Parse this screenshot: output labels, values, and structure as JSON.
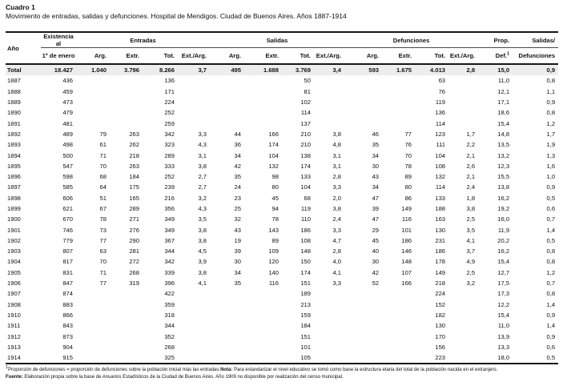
{
  "title": "Cuadro 1",
  "subtitle": "Movimiento de entradas, salidas y defunciones. Hospital de Mendigos. Ciudad de Buenos Aires. Años 1887-1914",
  "table": {
    "header": {
      "col_year": "Año",
      "col_stock_line1": "Existencia al",
      "col_stock_line2": "1º de enero",
      "groups": [
        "Entradas",
        "Salidas",
        "Defunciones"
      ],
      "sub": [
        "Arg.",
        "Extr.",
        "Tot.",
        "Ext./Arg."
      ],
      "col_prop_line1": "Prop.",
      "col_prop_line2": "Def.",
      "col_prop_sup": "1",
      "col_ratio_line1": "Salidas/",
      "col_ratio_line2": "Defunciones"
    },
    "rows": [
      [
        "Total",
        "18.427",
        "1.040",
        "3.796",
        "8.266",
        "3,7",
        "495",
        "1.688",
        "3.769",
        "3,4",
        "593",
        "1.675",
        "4.013",
        "2,8",
        "15,0",
        "0,9"
      ],
      [
        "1887",
        "436",
        "",
        "",
        "136",
        "",
        "",
        "",
        "50",
        "",
        "",
        "",
        "63",
        "",
        "11,0",
        "0,8"
      ],
      [
        "1888",
        "459",
        "",
        "",
        "171",
        "",
        "",
        "",
        "81",
        "",
        "",
        "",
        "76",
        "",
        "12,1",
        "1,1"
      ],
      [
        "1889",
        "473",
        "",
        "",
        "224",
        "",
        "",
        "",
        "102",
        "",
        "",
        "",
        "119",
        "",
        "17,1",
        "0,9"
      ],
      [
        "1890",
        "479",
        "",
        "",
        "252",
        "",
        "",
        "",
        "114",
        "",
        "",
        "",
        "136",
        "",
        "18,6",
        "0,8"
      ],
      [
        "1891",
        "481",
        "",
        "",
        "259",
        "",
        "",
        "",
        "137",
        "",
        "",
        "",
        "114",
        "",
        "15,4",
        "1,2"
      ],
      [
        "1892",
        "489",
        "79",
        "263",
        "342",
        "3,3",
        "44",
        "166",
        "210",
        "3,8",
        "46",
        "77",
        "123",
        "1,7",
        "14,8",
        "1,7"
      ],
      [
        "1893",
        "498",
        "61",
        "262",
        "323",
        "4,3",
        "36",
        "174",
        "210",
        "4,8",
        "35",
        "76",
        "111",
        "2,2",
        "13,5",
        "1,9"
      ],
      [
        "1894",
        "500",
        "71",
        "218",
        "289",
        "3,1",
        "34",
        "104",
        "138",
        "3,1",
        "34",
        "70",
        "104",
        "2,1",
        "13,2",
        "1,3"
      ],
      [
        "1895",
        "547",
        "70",
        "263",
        "333",
        "3,8",
        "42",
        "132",
        "174",
        "3,1",
        "30",
        "78",
        "108",
        "2,6",
        "12,3",
        "1,6"
      ],
      [
        "1896",
        "598",
        "68",
        "184",
        "252",
        "2,7",
        "35",
        "98",
        "133",
        "2,8",
        "43",
        "89",
        "132",
        "2,1",
        "15,5",
        "1,0"
      ],
      [
        "1897",
        "585",
        "64",
        "175",
        "239",
        "2,7",
        "24",
        "80",
        "104",
        "3,3",
        "34",
        "80",
        "114",
        "2,4",
        "13,8",
        "0,9"
      ],
      [
        "1898",
        "606",
        "51",
        "165",
        "216",
        "3,2",
        "23",
        "45",
        "68",
        "2,0",
        "47",
        "86",
        "133",
        "1,8",
        "16,2",
        "0,5"
      ],
      [
        "1899",
        "621",
        "67",
        "289",
        "356",
        "4,3",
        "25",
        "94",
        "119",
        "3,8",
        "39",
        "149",
        "188",
        "3,8",
        "19,2",
        "0,6"
      ],
      [
        "1900",
        "670",
        "78",
        "271",
        "349",
        "3,5",
        "32",
        "78",
        "110",
        "2,4",
        "47",
        "116",
        "163",
        "2,5",
        "16,0",
        "0,7"
      ],
      [
        "1901",
        "746",
        "73",
        "276",
        "349",
        "3,8",
        "43",
        "143",
        "186",
        "3,3",
        "29",
        "101",
        "130",
        "3,5",
        "11,9",
        "1,4"
      ],
      [
        "1902",
        "779",
        "77",
        "290",
        "367",
        "3,8",
        "19",
        "89",
        "108",
        "4,7",
        "45",
        "186",
        "231",
        "4,1",
        "20,2",
        "0,5"
      ],
      [
        "1903",
        "807",
        "63",
        "281",
        "344",
        "4,5",
        "39",
        "109",
        "148",
        "2,8",
        "40",
        "146",
        "186",
        "3,7",
        "16,2",
        "0,8"
      ],
      [
        "1904",
        "817",
        "70",
        "272",
        "342",
        "3,9",
        "30",
        "120",
        "150",
        "4,0",
        "30",
        "148",
        "178",
        "4,9",
        "15,4",
        "0,8"
      ],
      [
        "1905",
        "831",
        "71",
        "268",
        "339",
        "3,8",
        "34",
        "140",
        "174",
        "4,1",
        "42",
        "107",
        "149",
        "2,5",
        "12,7",
        "1,2"
      ],
      [
        "1906",
        "847",
        "77",
        "319",
        "396",
        "4,1",
        "35",
        "116",
        "151",
        "3,3",
        "52",
        "166",
        "218",
        "3,2",
        "17,5",
        "0,7"
      ],
      [
        "1907",
        "874",
        "",
        "",
        "422",
        "",
        "",
        "",
        "189",
        "",
        "",
        "",
        "224",
        "",
        "17,3",
        "0,8"
      ],
      [
        "1908",
        "883",
        "",
        "",
        "359",
        "",
        "",
        "",
        "213",
        "",
        "",
        "",
        "152",
        "",
        "12,2",
        "1,4"
      ],
      [
        "1910",
        "866",
        "",
        "",
        "318",
        "",
        "",
        "",
        "159",
        "",
        "",
        "",
        "182",
        "",
        "15,4",
        "0,9"
      ],
      [
        "1911",
        "843",
        "",
        "",
        "344",
        "",
        "",
        "",
        "184",
        "",
        "",
        "",
        "130",
        "",
        "11,0",
        "1,4"
      ],
      [
        "1912",
        "873",
        "",
        "",
        "352",
        "",
        "",
        "",
        "151",
        "",
        "",
        "",
        "170",
        "",
        "13,9",
        "0,9"
      ],
      [
        "1913",
        "904",
        "",
        "",
        "268",
        "",
        "",
        "",
        "101",
        "",
        "",
        "",
        "156",
        "",
        "13,3",
        "0,6"
      ],
      [
        "1914",
        "915",
        "",
        "",
        "325",
        "",
        "",
        "",
        "105",
        "",
        "",
        "",
        "223",
        "",
        "18,0",
        "0,5"
      ]
    ]
  },
  "footnotes": {
    "fn1_sup": "1",
    "fn1_text": "Proporción de defunciones = proporción de defunciones sobre la población inicial más  las entradas.",
    "fn1_nota_label": "Nota:",
    "fn1_nota_text": " Para estandarizar el nivel educativo se tomó como base la estructura etaria del total de la población nacida en el extranjero.",
    "fn2_label": "Fuente:",
    "fn2_text": " Elaboración propia sobre la base de  Anuarios Estadísticos de la Ciudad de Buenos Aires. Año 1909 no disponible por realización del censo municipal."
  }
}
